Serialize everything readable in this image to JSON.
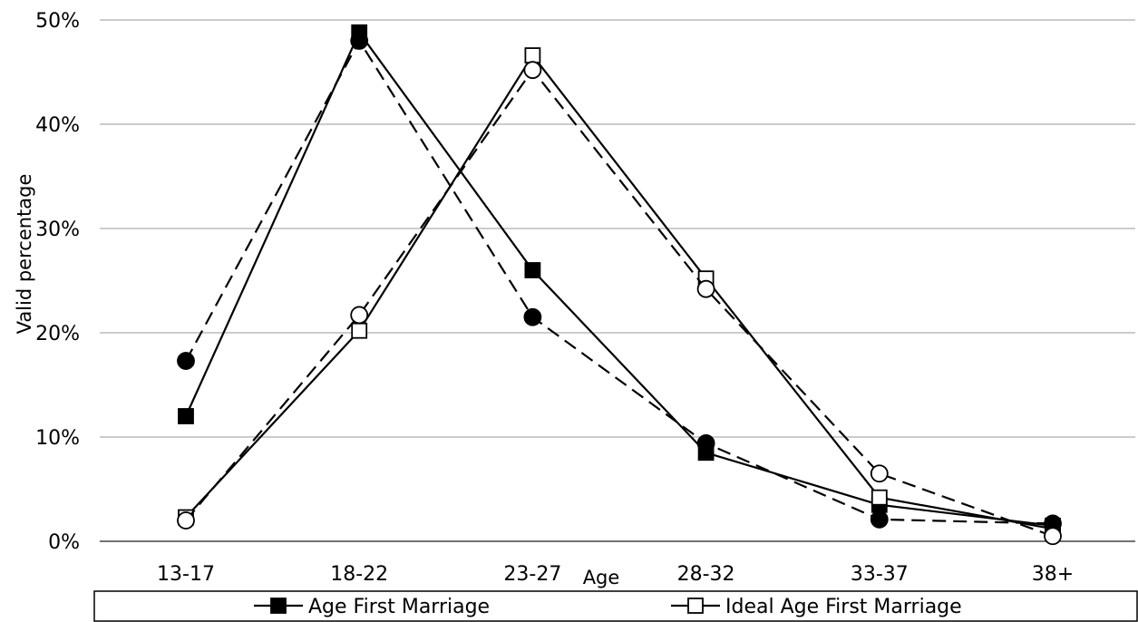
{
  "chart_data": {
    "type": "line",
    "title": "",
    "xlabel": "Age",
    "ylabel": "Valid percentage",
    "categories": [
      "13-17",
      "18-22",
      "23-27",
      "28-32",
      "33-37",
      "38+"
    ],
    "ylim": [
      0,
      50
    ],
    "yticks": [
      0,
      10,
      20,
      30,
      40,
      50
    ],
    "ytick_labels": [
      "0%",
      "10%",
      "20%",
      "30%",
      "40%",
      "50%"
    ],
    "grid": true,
    "legend_position": "bottom",
    "series": [
      {
        "name": "Age First Marriage",
        "marker": "square-filled",
        "dash": "solid",
        "values": [
          12.0,
          48.8,
          26.0,
          8.5,
          3.5,
          1.5
        ]
      },
      {
        "name": "Ideal Age First Marriage",
        "marker": "square-open",
        "dash": "solid",
        "values": [
          2.3,
          20.2,
          46.6,
          25.2,
          4.2,
          1.2
        ]
      },
      {
        "name": "",
        "marker": "circle-filled",
        "dash": "dashed",
        "values": [
          17.3,
          48.0,
          21.5,
          9.4,
          2.1,
          1.7
        ]
      },
      {
        "name": "",
        "marker": "circle-open",
        "dash": "dashed",
        "values": [
          2.0,
          21.7,
          45.2,
          24.2,
          6.5,
          0.5
        ]
      }
    ]
  }
}
